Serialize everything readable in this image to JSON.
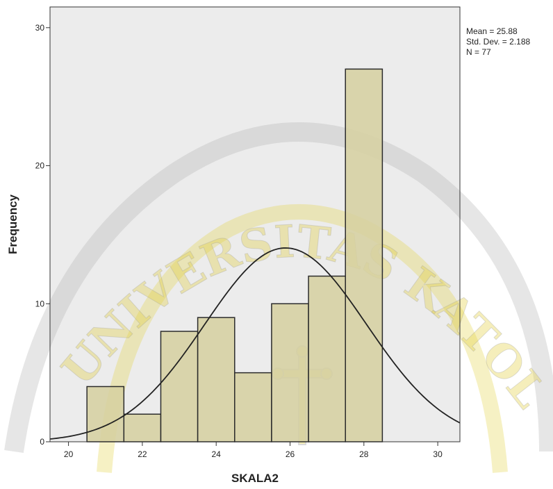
{
  "chart_data": {
    "type": "bar",
    "title": "",
    "xlabel": "SKALA2",
    "ylabel": "Frequency",
    "xlim": [
      19.5,
      30.6
    ],
    "ylim": [
      0,
      31.5
    ],
    "x_ticks": [
      "20",
      "22",
      "24",
      "26",
      "28",
      "30"
    ],
    "y_ticks": [
      "0",
      "10",
      "20",
      "30"
    ],
    "bins": [
      {
        "x": 21,
        "value": 4
      },
      {
        "x": 22,
        "value": 2
      },
      {
        "x": 23,
        "value": 8
      },
      {
        "x": 24,
        "value": 9
      },
      {
        "x": 25,
        "value": 5
      },
      {
        "x": 26,
        "value": 10
      },
      {
        "x": 27,
        "value": 12
      },
      {
        "x": 28,
        "value": 27
      }
    ],
    "bin_width": 1,
    "normal_curve": {
      "mean": 25.88,
      "std": 2.188,
      "n": 77
    },
    "stats": {
      "mean": "Mean = 25.88",
      "std": "Std. Dev. = 2.188",
      "n": "N = 77"
    },
    "grid": false,
    "colors": {
      "plot_background": "#ececec",
      "bar_fill": "#d6d0a0",
      "bar_stroke": "#2b2b2b",
      "curve": "#222222",
      "watermark_gold": "#e2cf3c",
      "watermark_gray": "#b8b8b8"
    }
  },
  "watermark": {
    "arc_text": "UNIVERSITAS KATOLIK",
    "emblem": "cross-emblem"
  }
}
